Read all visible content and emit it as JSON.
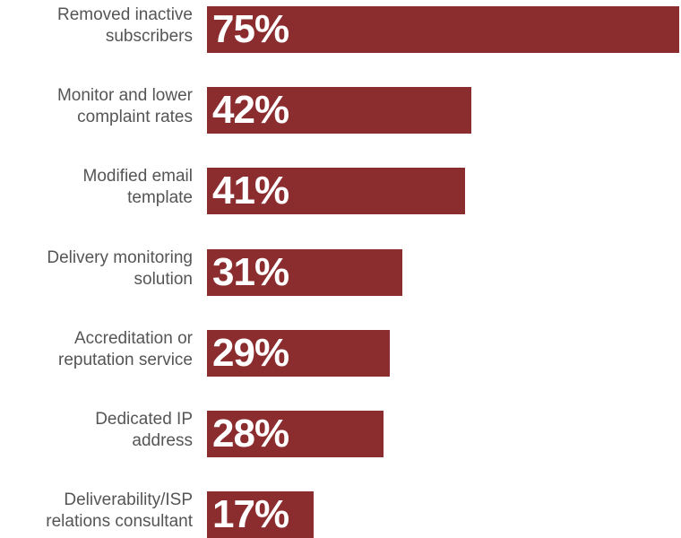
{
  "chart_data": {
    "type": "bar",
    "orientation": "horizontal",
    "categories": [
      [
        "Removed inactive",
        "subscribers"
      ],
      [
        "Monitor and lower",
        "complaint rates"
      ],
      [
        "Modified email",
        "template"
      ],
      [
        "Delivery monitoring",
        "solution"
      ],
      [
        "Accreditation or",
        "reputation service"
      ],
      [
        "Dedicated IP",
        "address"
      ],
      [
        "Deliverability/ISP",
        "relations consultant"
      ]
    ],
    "values": [
      75,
      42,
      41,
      31,
      29,
      28,
      17
    ],
    "value_labels": [
      "75%",
      "42%",
      "41%",
      "31%",
      "29%",
      "28%",
      "17%"
    ],
    "xlim": [
      0,
      75
    ],
    "grid": false,
    "title": "",
    "xlabel": "",
    "ylabel": ""
  },
  "colors": {
    "bar": "#8b2c2f",
    "bar_text": "#ffffff",
    "label_text": "#555555"
  }
}
